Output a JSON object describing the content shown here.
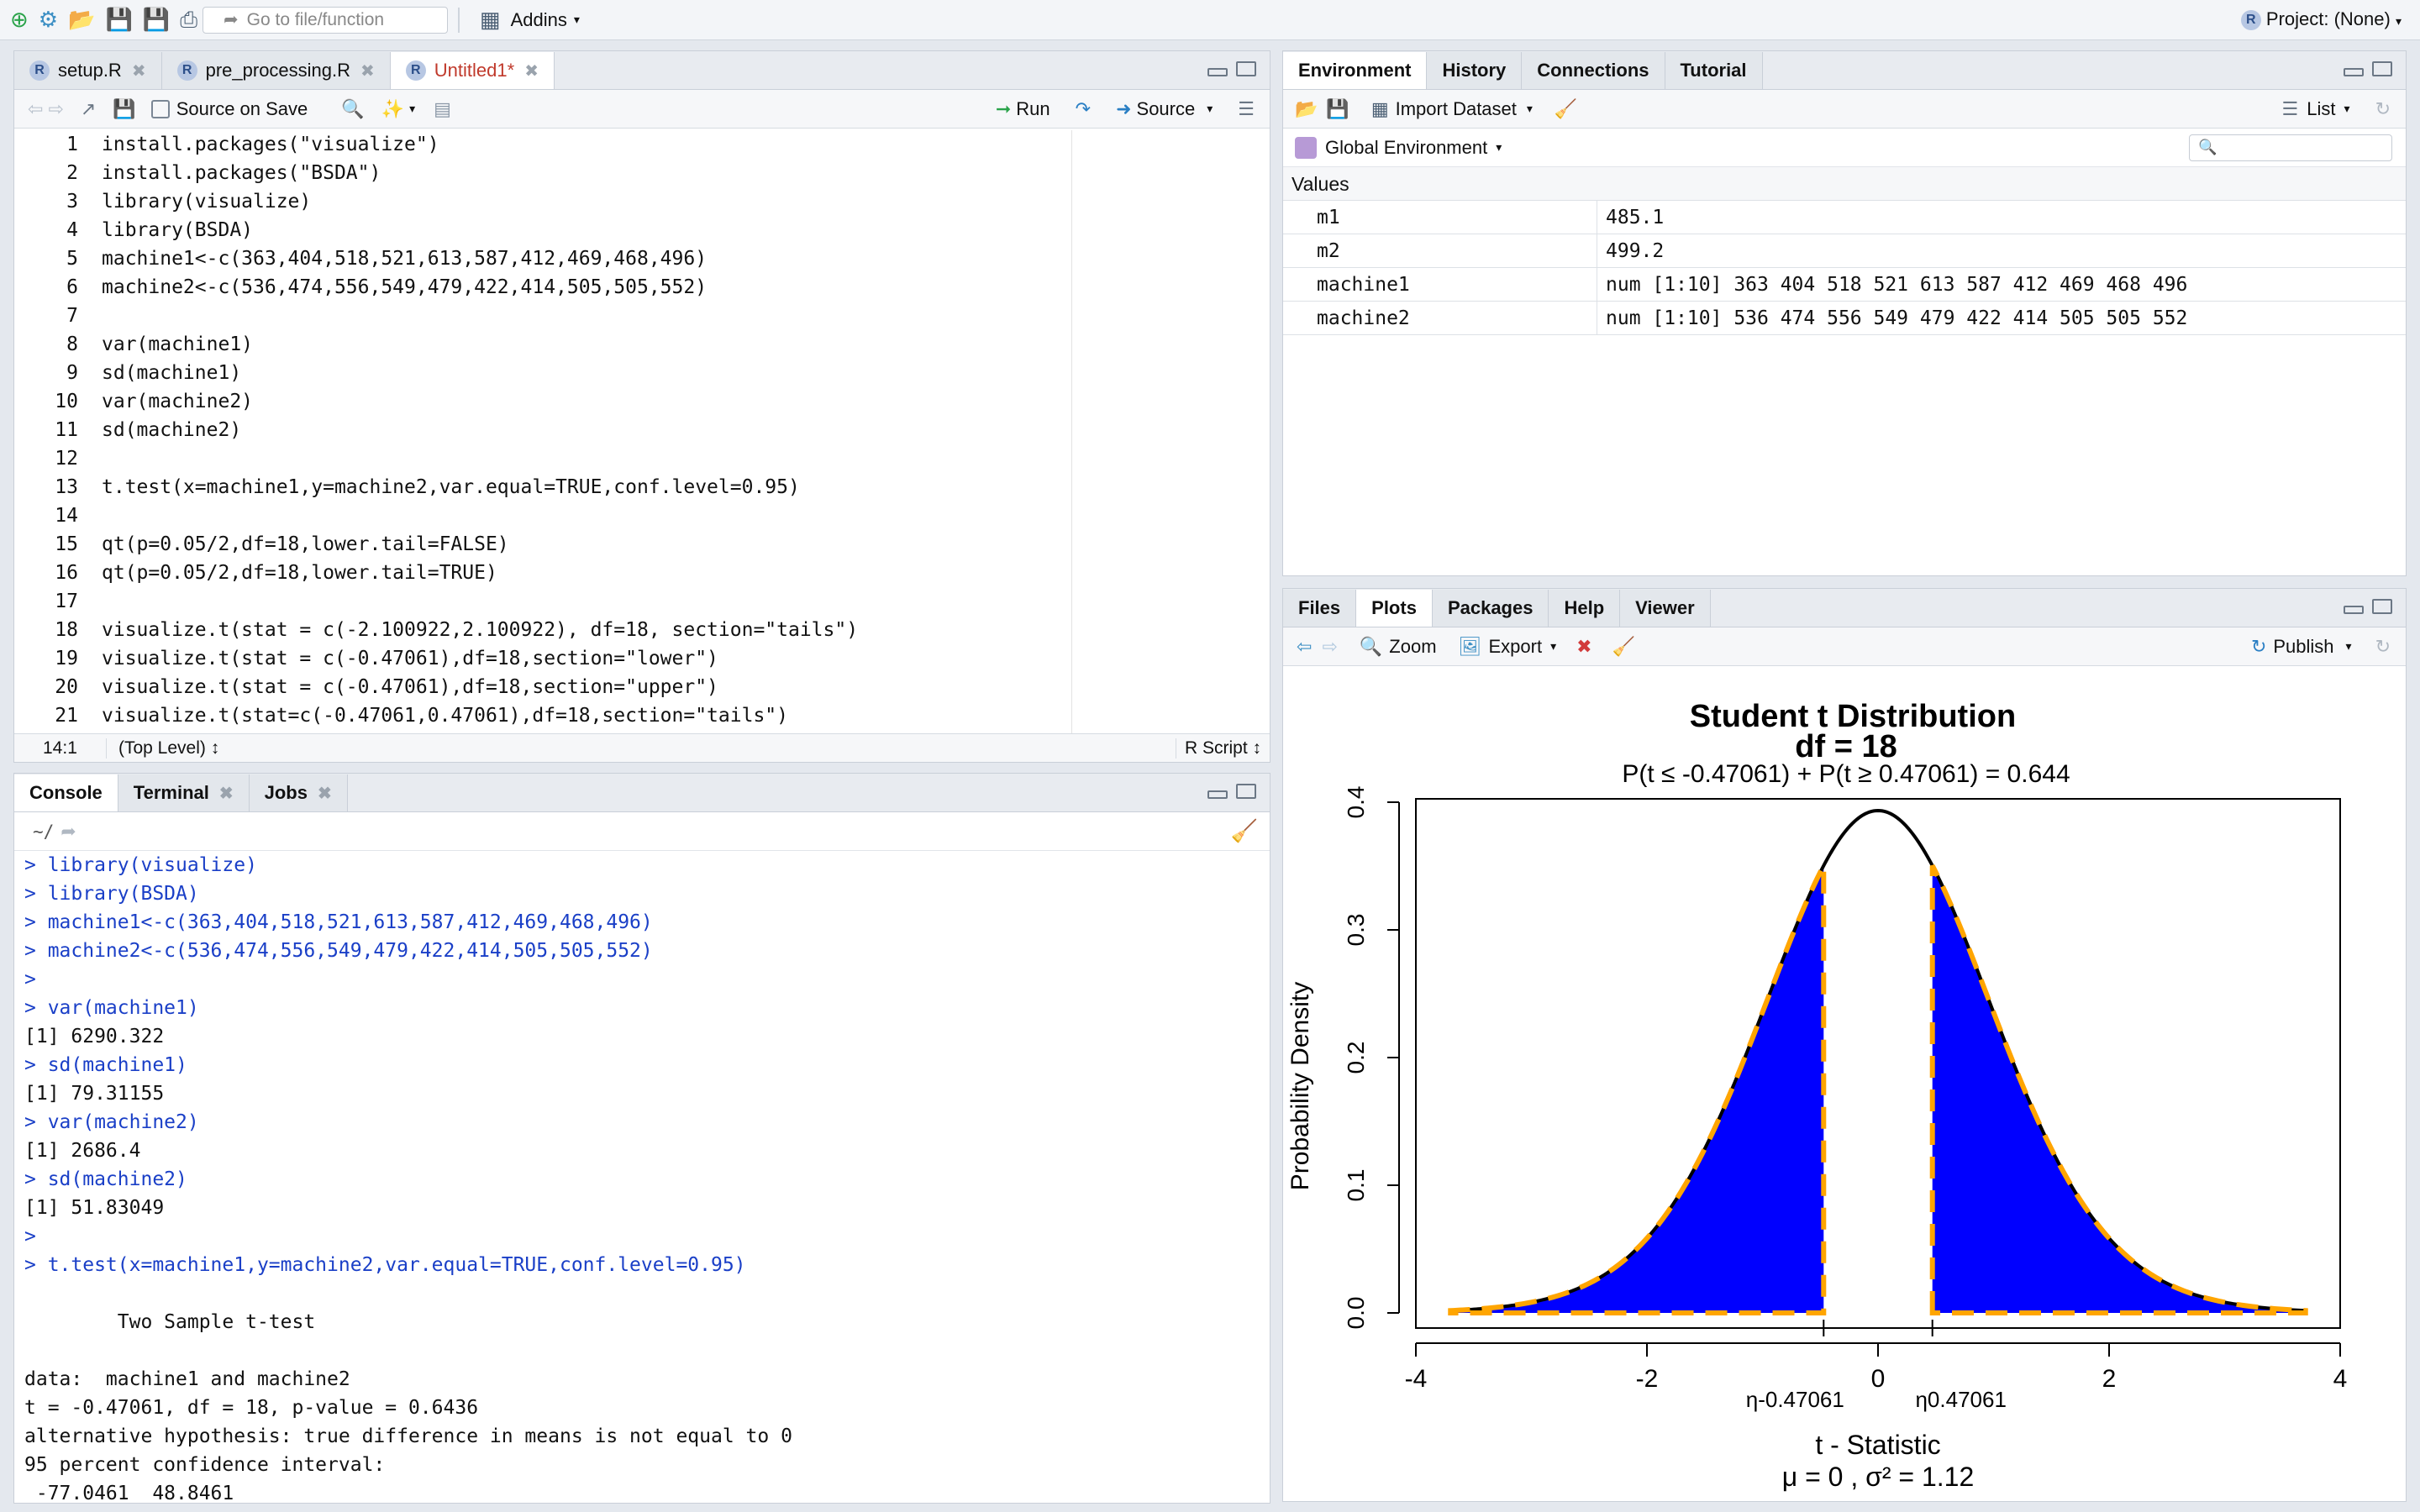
{
  "toolbar": {
    "goto_placeholder": "Go to file/function",
    "addins": "Addins",
    "project": "Project: (None)"
  },
  "editor": {
    "tabs": [
      {
        "label": "setup.R"
      },
      {
        "label": "pre_processing.R"
      },
      {
        "label": "Untitled1*"
      }
    ],
    "source_on_save": "Source on Save",
    "run": "Run",
    "source": "Source",
    "status_pos": "14:1",
    "status_scope": "(Top Level) ↕",
    "status_type": "R Script ↕",
    "lines": [
      "install.packages(\"visualize\")",
      "install.packages(\"BSDA\")",
      "library(visualize)",
      "library(BSDA)",
      "machine1<-c(363,404,518,521,613,587,412,469,468,496)",
      "machine2<-c(536,474,556,549,479,422,414,505,505,552)",
      "",
      "var(machine1)",
      "sd(machine1)",
      "var(machine2)",
      "sd(machine2)",
      "",
      "t.test(x=machine1,y=machine2,var.equal=TRUE,conf.level=0.95)",
      "",
      "qt(p=0.05/2,df=18,lower.tail=FALSE)",
      "qt(p=0.05/2,df=18,lower.tail=TRUE)",
      "",
      "visualize.t(stat = c(-2.100922,2.100922), df=18, section=\"tails\")",
      "visualize.t(stat = c(-0.47061),df=18,section=\"lower\")",
      "visualize.t(stat = c(-0.47061),df=18,section=\"upper\")",
      "visualize.t(stat=c(-0.47061,0.47061),df=18,section=\"tails\")"
    ]
  },
  "console": {
    "tabs": [
      {
        "label": "Console"
      },
      {
        "label": "Terminal"
      },
      {
        "label": "Jobs"
      }
    ],
    "path": "~/",
    "lines": [
      {
        "t": "> library(visualize)",
        "in": true
      },
      {
        "t": "> library(BSDA)",
        "in": true
      },
      {
        "t": "> machine1<-c(363,404,518,521,613,587,412,469,468,496)",
        "in": true
      },
      {
        "t": "> machine2<-c(536,474,556,549,479,422,414,505,505,552)",
        "in": true
      },
      {
        "t": ">",
        "in": true
      },
      {
        "t": "> var(machine1)",
        "in": true
      },
      {
        "t": "[1] 6290.322",
        "in": false
      },
      {
        "t": "> sd(machine1)",
        "in": true
      },
      {
        "t": "[1] 79.31155",
        "in": false
      },
      {
        "t": "> var(machine2)",
        "in": true
      },
      {
        "t": "[1] 2686.4",
        "in": false
      },
      {
        "t": "> sd(machine2)",
        "in": true
      },
      {
        "t": "[1] 51.83049",
        "in": false
      },
      {
        "t": ">",
        "in": true
      },
      {
        "t": "> t.test(x=machine1,y=machine2,var.equal=TRUE,conf.level=0.95)",
        "in": true
      },
      {
        "t": "",
        "in": false
      },
      {
        "t": "        Two Sample t-test",
        "in": false
      },
      {
        "t": "",
        "in": false
      },
      {
        "t": "data:  machine1 and machine2",
        "in": false
      },
      {
        "t": "t = -0.47061, df = 18, p-value = 0.6436",
        "in": false
      },
      {
        "t": "alternative hypothesis: true difference in means is not equal to 0",
        "in": false
      },
      {
        "t": "95 percent confidence interval:",
        "in": false
      },
      {
        "t": " -77.0461  48.8461",
        "in": false
      }
    ]
  },
  "environment": {
    "tabs": [
      {
        "label": "Environment"
      },
      {
        "label": "History"
      },
      {
        "label": "Connections"
      },
      {
        "label": "Tutorial"
      }
    ],
    "import_dataset": "Import Dataset",
    "list_view": "List",
    "scope": "Global Environment",
    "section": "Values",
    "rows": [
      {
        "name": "m1",
        "value": "485.1"
      },
      {
        "name": "m2",
        "value": "499.2"
      },
      {
        "name": "machine1",
        "value": "num [1:10] 363 404 518 521 613 587 412 469 468 496"
      },
      {
        "name": "machine2",
        "value": "num [1:10] 536 474 556 549 479 422 414 505 505 552"
      }
    ]
  },
  "plots": {
    "tabs": [
      {
        "label": "Files"
      },
      {
        "label": "Plots"
      },
      {
        "label": "Packages"
      },
      {
        "label": "Help"
      },
      {
        "label": "Viewer"
      }
    ],
    "zoom": "Zoom",
    "export": "Export",
    "publish": "Publish"
  },
  "chart_data": {
    "type": "area",
    "title": "Student t Distribution",
    "subtitle": "df  =  18",
    "annotation": "P(t ≤ -0.47061) + P(t ≥ 0.47061) = 0.644",
    "xlabel": "t - Statistic",
    "ylabel": "Probability Density",
    "footer": "μ =  0 , σ² =  1.12",
    "df": 18,
    "xlim": [
      -4,
      4
    ],
    "ylim": [
      0,
      0.4
    ],
    "x_ticks": [
      -4,
      -2,
      0,
      2,
      4
    ],
    "y_ticks": [
      0.0,
      0.1,
      0.2,
      0.3,
      0.4
    ],
    "y_tick_labels": [
      "0.0",
      "0.1",
      "0.2",
      "0.3",
      "0.4"
    ],
    "critical_values": [
      -0.47061,
      0.47061
    ],
    "critical_labels": [
      "η-0.47061",
      "η0.47061"
    ],
    "shaded_regions": [
      [
        -3.7,
        -0.47061
      ],
      [
        0.47061,
        3.7
      ]
    ],
    "fill_color": "#0000ff",
    "dash_color": "#ffa500",
    "curve_color": "#000000"
  }
}
